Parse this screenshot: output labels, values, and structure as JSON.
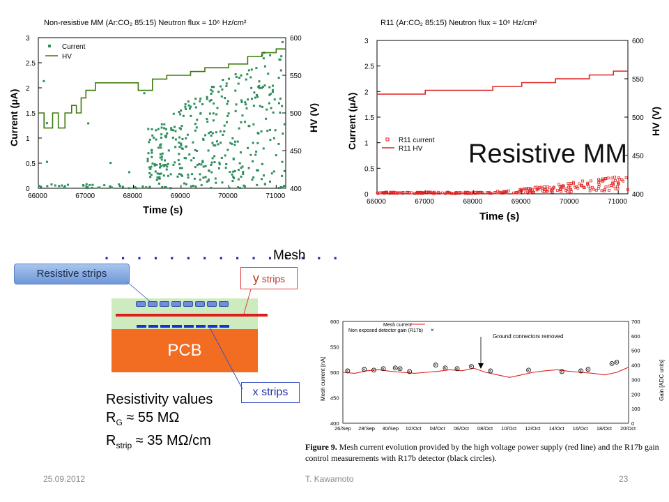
{
  "chart_data": [
    {
      "type": "scatter",
      "title": "Non-resistive MM (Ar:CO₂ 85:15)  Neutron flux ≈ 10⁶ Hz/cm²",
      "xlabel": "Time (s)",
      "ylabel": "Current (μA)",
      "y2label": "HV (V)",
      "xlim": [
        66000,
        71200
      ],
      "ylim": [
        0,
        3
      ],
      "y2lim": [
        400,
        600
      ],
      "xticks": [
        "66000",
        "67000",
        "68000",
        "69000",
        "70000",
        "71000"
      ],
      "yticks": [
        "0",
        "0.5",
        "1",
        "1.5",
        "2",
        "2.5",
        "3"
      ],
      "y2ticks": [
        "400",
        "450",
        "500",
        "550",
        "600"
      ],
      "legend": [
        "Current",
        "HV"
      ],
      "series": [
        {
          "name": "HV",
          "color": "#3e7a0c",
          "x": [
            66000,
            66120,
            66120,
            66300,
            66300,
            66420,
            66420,
            66560,
            66560,
            66700,
            66700,
            66800,
            66800,
            66900,
            66900,
            67000,
            67000,
            67200,
            67200,
            67400,
            67400,
            67800,
            68100,
            68100,
            68400,
            68400,
            68700,
            68700,
            69200,
            69200,
            69500,
            69500,
            70000,
            70000,
            70400,
            70400,
            70700,
            70700,
            71000,
            71000,
            71200
          ],
          "y": [
            500,
            500,
            480,
            480,
            500,
            500,
            480,
            480,
            500,
            500,
            510,
            510,
            500,
            500,
            520,
            520,
            530,
            530,
            540,
            540,
            540,
            540,
            540,
            530,
            530,
            545,
            545,
            550,
            550,
            555,
            555,
            560,
            560,
            565,
            565,
            575,
            575,
            580,
            580,
            585,
            585
          ]
        },
        {
          "name": "Current",
          "color": "#2f8f5a",
          "note_points": "scattered current readings mostly between 0 and 3 uA after 68300 s"
        }
      ]
    },
    {
      "type": "line",
      "title": "R11 (Ar:CO₂ 85:15)  Neutron flux ≈ 10⁶ Hz/cm²",
      "xlabel": "Time (s)",
      "ylabel": "Current (μA)",
      "y2label": "HV (V)",
      "xlim": [
        66000,
        71200
      ],
      "ylim": [
        0,
        3
      ],
      "y2lim": [
        400,
        600
      ],
      "xticks": [
        "66000",
        "67000",
        "68000",
        "69000",
        "70000",
        "71000"
      ],
      "yticks": [
        "0",
        "0.5",
        "1",
        "1.5",
        "2",
        "2.5",
        "3"
      ],
      "y2ticks": [
        "400",
        "450",
        "500",
        "550",
        "600"
      ],
      "legend": [
        "R11 current",
        "R11 HV"
      ],
      "series": [
        {
          "name": "R11 HV",
          "color": "#e02020",
          "x": [
            66000,
            67000,
            67000,
            68400,
            68400,
            69000,
            69000,
            69700,
            69700,
            70400,
            70400,
            70900,
            70900,
            71200
          ],
          "y": [
            530,
            530,
            535,
            535,
            540,
            540,
            545,
            545,
            550,
            550,
            555,
            555,
            560,
            560
          ]
        },
        {
          "name": "R11 current",
          "color": "#e02020",
          "x": [
            66100,
            66500,
            67000,
            67500,
            68000,
            68500,
            69000,
            69500,
            70000,
            70300,
            70600,
            70900,
            71100
          ],
          "y": [
            0.02,
            0.02,
            0.03,
            0.02,
            0.03,
            0.05,
            0.06,
            0.08,
            0.1,
            0.12,
            0.15,
            0.2,
            0.25
          ]
        }
      ]
    },
    {
      "type": "line",
      "xlabel": "",
      "ylabel": "Mesh current [nA]",
      "y2label": "Gain [ADC units]",
      "ylim": [
        400,
        600
      ],
      "y2lim": [
        0,
        700
      ],
      "categories": [
        "26/Sep",
        "28/Sep",
        "30/Sep",
        "02/Oct",
        "04/Oct",
        "06/Oct",
        "08/Oct",
        "10/Oct",
        "12/Oct",
        "14/Oct",
        "16/Oct",
        "18/Oct",
        "20/Oct"
      ],
      "yticks": [
        "400",
        "450",
        "500",
        "550",
        "600"
      ],
      "y2ticks": [
        "0",
        "100",
        "200",
        "300",
        "400",
        "500",
        "600",
        "700"
      ],
      "legend": [
        "Mesh current",
        "Non exposed detector gain (R17b)"
      ],
      "annotation": "Ground connectors removed",
      "series": [
        {
          "name": "Mesh current",
          "color": "#e02020",
          "x": [
            0,
            0.5,
            1,
            1.5,
            2,
            2.5,
            3,
            3.5,
            4,
            4.5,
            5,
            5.5,
            6,
            6.5,
            7,
            7.5,
            8,
            8.5,
            9,
            9.5,
            10,
            10.5,
            11,
            11.5,
            12
          ],
          "y": [
            500,
            498,
            503,
            505,
            502,
            500,
            498,
            500,
            502,
            505,
            503,
            508,
            500,
            495,
            490,
            495,
            500,
            503,
            505,
            502,
            500,
            498,
            495,
            500,
            510
          ]
        },
        {
          "name": "Non exposed detector gain (R17b)",
          "color": "#000000",
          "x": [
            0.2,
            0.9,
            1.3,
            1.7,
            2.2,
            2.4,
            2.8,
            3.9,
            4.3,
            4.8,
            5.4,
            6.2,
            7.8,
            9.2,
            10.0,
            10.3,
            11.3,
            11.5
          ],
          "y": [
            360,
            370,
            365,
            375,
            380,
            375,
            355,
            400,
            380,
            375,
            390,
            360,
            365,
            355,
            360,
            370,
            410,
            420
          ]
        }
      ]
    }
  ],
  "labels": {
    "resistive_mm": "Resistive MM",
    "mesh": "Mesh",
    "resistive_strips": "Resistive strips",
    "y_strips_y": "y",
    "y_strips_rest": " strips",
    "x_strips": "x strips",
    "pcb": "PCB",
    "resistivity_title": "Resistivity values",
    "rg_main": "R",
    "rg_sub": "G",
    "rg_value": " ≈ 55 MΩ",
    "rstrip_main": "R",
    "rstrip_sub": "strip",
    "rstrip_value": " ≈ 35 MΩ/cm"
  },
  "caption": {
    "figure": "Figure 9.",
    "text": "Mesh current evolution provided by the high voltage power supply (red line) and the R17b gain control measurements with R17b detector (black circles)."
  },
  "footer": {
    "date": "25.09.2012",
    "author": "T. Kawamoto",
    "page": "23"
  }
}
